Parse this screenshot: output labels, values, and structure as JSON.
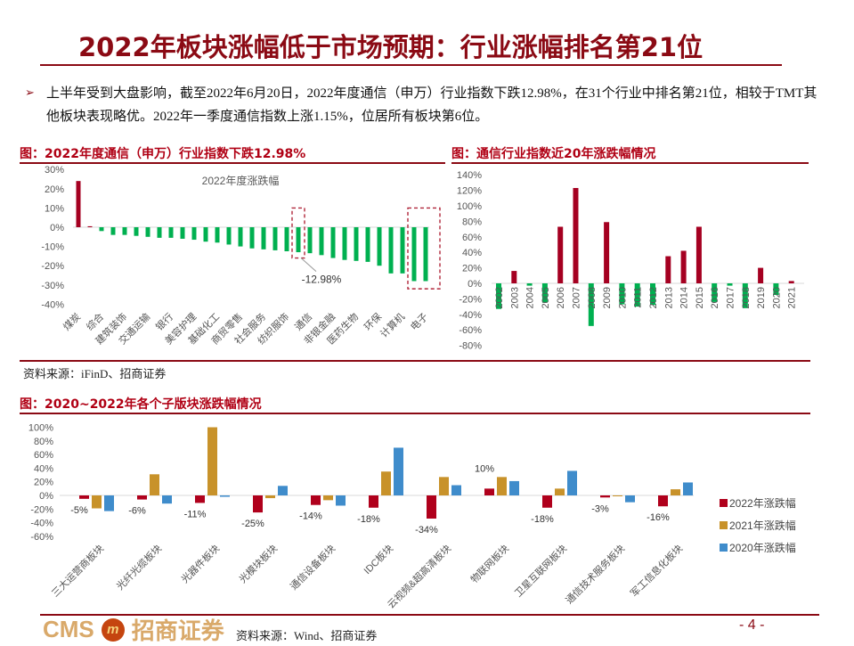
{
  "header": {
    "title": "2022年板块涨幅低于市场预期：行业涨幅排名第21位"
  },
  "bullet": {
    "marker": "➢",
    "text": "上半年受到大盘影响，截至2022年6月20日，2022年度通信（申万）行业指数下跌12.98%，在31个行业中排名第21位，相较于TMT其他板块表现略优。2022年一季度通信指数上涨1.15%，位居所有板块第6位。"
  },
  "figure1": {
    "title": "图：2022年度通信（申万）行业指数下跌12.98%",
    "source": "资料来源：iFinD、招商证券"
  },
  "figure2": {
    "title": "图：通信行业指数近20年涨跌幅情况"
  },
  "figure3": {
    "title": "图：2020~2022年各个子版块涨跌幅情况",
    "source": "资料来源：Wind、招商证券"
  },
  "footer": {
    "logo_latin": "CMS",
    "logo_mark": "m",
    "logo_cn": "招商证券",
    "page": "- 4 -"
  },
  "colors": {
    "brand_red": "#8b0a14",
    "up_red": "#a50021",
    "down_green": "#00b050",
    "y2022": "#b0001c",
    "y2021": "#c8922a",
    "y2020": "#3f8ccb"
  },
  "chart_data": [
    {
      "type": "bar",
      "title": "2022年度涨跌幅",
      "xlabel": "",
      "ylabel": "",
      "ylim": [
        -0.4,
        0.3
      ],
      "yticks": [
        "30%",
        "20%",
        "10%",
        "0%",
        "-10%",
        "-20%",
        "-30%",
        "-40%"
      ],
      "categories_labeled": [
        "煤炭",
        "综合",
        "建筑装饰",
        "交通运输",
        "银行",
        "美容护理",
        "基础化工",
        "商贸零售",
        "社会服务",
        "纺织服饰",
        "通信",
        "非银金融",
        "医药生物",
        "环保",
        "计算机",
        "电子"
      ],
      "label_every": 2,
      "values": [
        24,
        0.5,
        -2,
        -4,
        -4,
        -4.5,
        -5,
        -5.5,
        -5.5,
        -6,
        -6.5,
        -7.5,
        -8,
        -9,
        -10,
        -11,
        -11.5,
        -12,
        -12.5,
        -12.98,
        -13.5,
        -14.5,
        -16,
        -17,
        -17.5,
        -18,
        -20,
        -24,
        -24,
        -28,
        -28
      ],
      "highlight_index": 20,
      "annotation": "-12.98%",
      "highlight_boxes": [
        "通信",
        "计算机/电子"
      ]
    },
    {
      "type": "bar",
      "title": "通信行业指数近20年涨跌幅情况",
      "ylim": [
        -0.8,
        1.4
      ],
      "yticks": [
        "140%",
        "120%",
        "100%",
        "80%",
        "60%",
        "40%",
        "20%",
        "0%",
        "-20%",
        "-40%",
        "-60%",
        "-80%"
      ],
      "categories": [
        "2002",
        "2003",
        "2004",
        "2005",
        "2006",
        "2007",
        "2008",
        "2009",
        "2010",
        "2011",
        "2012",
        "2013",
        "2014",
        "2015",
        "2016",
        "2017",
        "2018",
        "2019",
        "2020",
        "2021"
      ],
      "values": [
        -33,
        16,
        -3,
        -25,
        73,
        123,
        -55,
        79,
        -27,
        -30,
        -28,
        35,
        42,
        73,
        -24,
        -3,
        -32,
        20,
        -15,
        3
      ]
    },
    {
      "type": "bar",
      "title": "2020~2022年各个子版块涨跌幅情况",
      "ylim": [
        -0.6,
        1.0
      ],
      "yticks": [
        "100%",
        "80%",
        "60%",
        "40%",
        "20%",
        "0%",
        "-20%",
        "-40%",
        "-60%"
      ],
      "categories": [
        "三大运营商板块",
        "光纤光缆板块",
        "光器件板块",
        "光模块板块",
        "通信设备板块",
        "IDC板块",
        "云视频&超高清板块",
        "物联网板块",
        "卫星互联网板块",
        "通信技术服务板块",
        "军工信息化板块"
      ],
      "series": [
        {
          "name": "2022年涨跌幅",
          "values": [
            -5,
            -6,
            -11,
            -25,
            -14,
            -18,
            -34,
            10,
            -18,
            -3,
            -16
          ]
        },
        {
          "name": "2021年涨跌幅",
          "values": [
            -19,
            31,
            100,
            -4,
            -7,
            35,
            27,
            27,
            10,
            0,
            9
          ]
        },
        {
          "name": "2020年涨跌幅",
          "values": [
            -23,
            -12,
            -2,
            14,
            -15,
            70,
            15,
            21,
            36,
            -10,
            19
          ]
        }
      ],
      "data_labels": [
        "-5%",
        "-6%",
        "-11%",
        "-25%",
        "-14%",
        "-18%",
        "-34%",
        "10%",
        "-18%",
        "-3%",
        "-16%"
      ],
      "legend": [
        "2022年涨跌幅",
        "2021年涨跌幅",
        "2020年涨跌幅"
      ],
      "legend_position": "right"
    }
  ]
}
